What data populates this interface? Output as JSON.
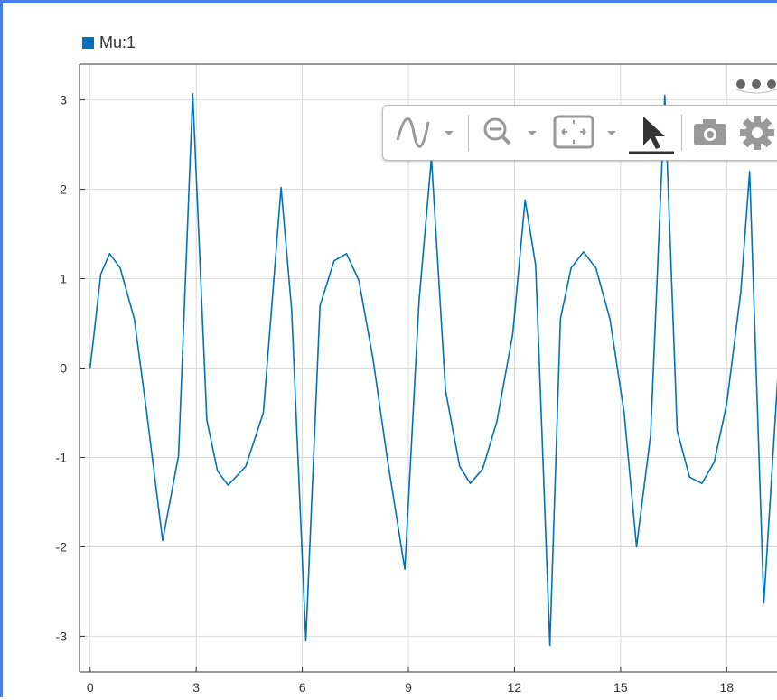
{
  "legend": {
    "label": "Mu:1",
    "color": "#0072bd"
  },
  "toolbar": {
    "items": [
      "signal-style-icon",
      "zoom-icon",
      "fit-to-view-icon",
      "cursor-icon",
      "camera-icon",
      "gear-icon"
    ],
    "more": "more-options-icon"
  },
  "chart_data": {
    "type": "line",
    "xlim": [
      -0.3,
      19.5
    ],
    "ylim": [
      -3.4,
      3.4
    ],
    "xticks": [
      0,
      3,
      6,
      9,
      12,
      15,
      18
    ],
    "yticks": [
      3,
      2,
      1,
      0,
      -1,
      -2,
      -3
    ],
    "grid": true,
    "series": [
      {
        "name": "Mu:1",
        "color": "#0072bd",
        "x": [
          0,
          0.1,
          0.3,
          0.55,
          0.85,
          1.25,
          1.6,
          2.05,
          2.5,
          2.9,
          3.3,
          3.6,
          3.9,
          4.4,
          4.9,
          5.4,
          5.7,
          6.1,
          6.5,
          6.9,
          7.25,
          7.6,
          8.0,
          8.4,
          8.9,
          9.3,
          9.65,
          10.05,
          10.45,
          10.75,
          11.1,
          11.5,
          11.95,
          12.3,
          12.6,
          13.0,
          13.3,
          13.6,
          13.95,
          14.3,
          14.7,
          15.1,
          15.45,
          15.85,
          16.25,
          16.6,
          16.95,
          17.3,
          17.65,
          18.0,
          18.4,
          18.65,
          19.05,
          19.45
        ],
        "y": [
          0,
          0.35,
          1.05,
          1.28,
          1.12,
          0.55,
          -0.5,
          -1.93,
          -0.98,
          3.07,
          -0.58,
          -1.15,
          -1.31,
          -1.1,
          -0.5,
          2.02,
          0.65,
          -3.05,
          0.7,
          1.2,
          1.28,
          0.98,
          0.1,
          -1.0,
          -2.25,
          0.75,
          2.35,
          -0.25,
          -1.1,
          -1.29,
          -1.13,
          -0.6,
          0.38,
          1.88,
          1.15,
          -3.1,
          0.55,
          1.12,
          1.3,
          1.12,
          0.55,
          -0.5,
          -2.0,
          -0.75,
          3.05,
          -0.7,
          -1.22,
          -1.29,
          -1.05,
          -0.4,
          0.85,
          2.2,
          -2.63,
          -0.08
        ]
      }
    ]
  }
}
